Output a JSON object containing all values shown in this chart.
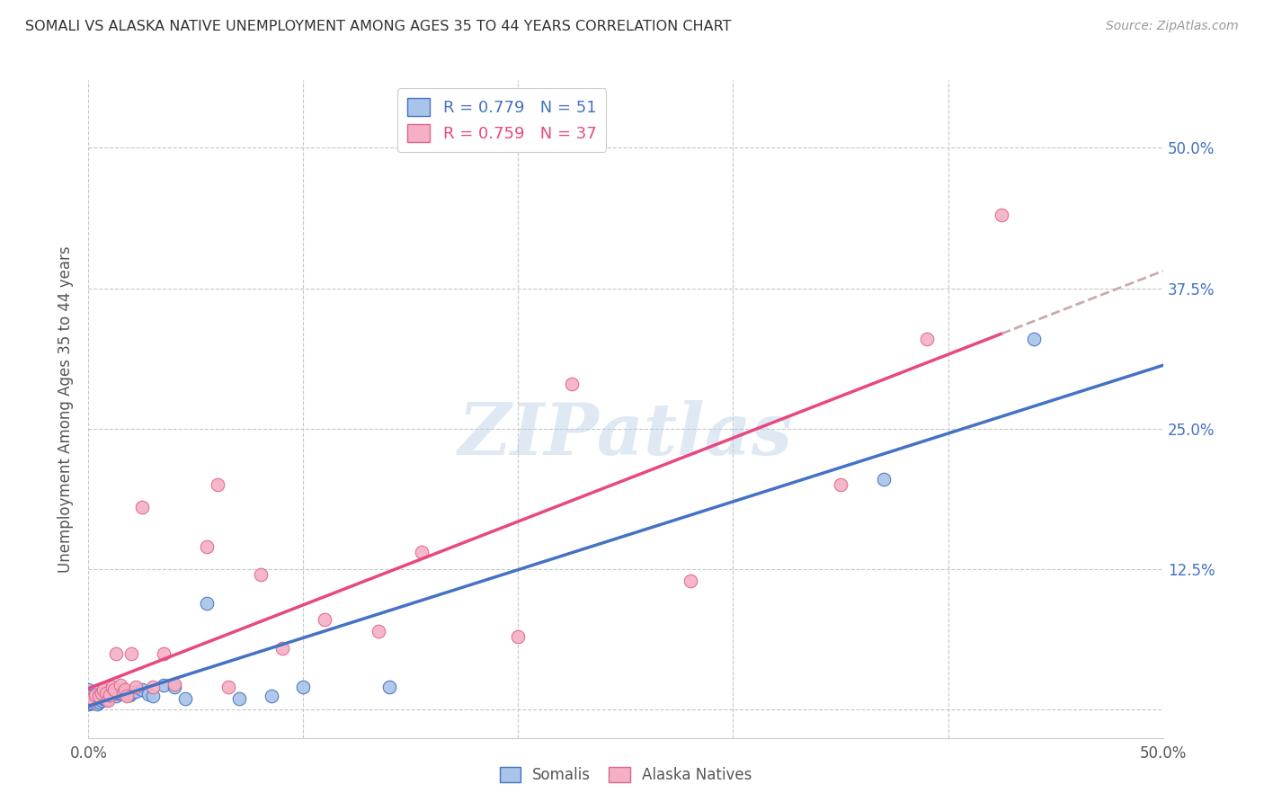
{
  "title": "SOMALI VS ALASKA NATIVE UNEMPLOYMENT AMONG AGES 35 TO 44 YEARS CORRELATION CHART",
  "source": "Source: ZipAtlas.com",
  "ylabel": "Unemployment Among Ages 35 to 44 years",
  "xlim": [
    0.0,
    0.5
  ],
  "ylim": [
    -0.025,
    0.56
  ],
  "xticks": [
    0.0,
    0.5
  ],
  "xticklabels": [
    "0.0%",
    "50.0%"
  ],
  "yticks": [
    0.0,
    0.125,
    0.25,
    0.375,
    0.5
  ],
  "yticklabels": [
    "",
    "12.5%",
    "25.0%",
    "37.5%",
    "50.0%"
  ],
  "R_somali": 0.779,
  "N_somali": 51,
  "R_alaska": 0.759,
  "N_alaska": 37,
  "somali_color": "#a8c4e8",
  "alaska_color": "#f5b0c5",
  "somali_line_color": "#4472c4",
  "alaska_line_color": "#e84880",
  "alaska_dash_color": "#ccaaaa",
  "watermark": "ZIPatlas",
  "background_color": "#ffffff",
  "grid_color": "#c8c8c8",
  "somali_x": [
    0.0,
    0.0,
    0.0,
    0.0,
    0.0,
    0.001,
    0.001,
    0.001,
    0.002,
    0.002,
    0.003,
    0.003,
    0.004,
    0.004,
    0.005,
    0.005,
    0.005,
    0.006,
    0.006,
    0.007,
    0.007,
    0.008,
    0.008,
    0.009,
    0.009,
    0.01,
    0.01,
    0.011,
    0.012,
    0.013,
    0.014,
    0.015,
    0.016,
    0.017,
    0.018,
    0.019,
    0.02,
    0.022,
    0.025,
    0.028,
    0.03,
    0.035,
    0.04,
    0.045,
    0.055,
    0.07,
    0.085,
    0.1,
    0.14,
    0.37,
    0.44
  ],
  "somali_y": [
    0.005,
    0.008,
    0.01,
    0.012,
    0.018,
    0.006,
    0.008,
    0.012,
    0.006,
    0.01,
    0.008,
    0.013,
    0.005,
    0.01,
    0.007,
    0.012,
    0.018,
    0.008,
    0.014,
    0.01,
    0.015,
    0.009,
    0.015,
    0.01,
    0.013,
    0.012,
    0.016,
    0.013,
    0.014,
    0.012,
    0.015,
    0.015,
    0.016,
    0.016,
    0.014,
    0.013,
    0.015,
    0.016,
    0.018,
    0.014,
    0.012,
    0.022,
    0.02,
    0.01,
    0.095,
    0.01,
    0.012,
    0.02,
    0.02,
    0.205,
    0.33
  ],
  "alaska_x": [
    0.0,
    0.001,
    0.002,
    0.003,
    0.005,
    0.006,
    0.007,
    0.008,
    0.009,
    0.01,
    0.011,
    0.012,
    0.013,
    0.015,
    0.016,
    0.017,
    0.018,
    0.02,
    0.022,
    0.025,
    0.03,
    0.035,
    0.04,
    0.055,
    0.06,
    0.065,
    0.08,
    0.09,
    0.11,
    0.135,
    0.155,
    0.2,
    0.225,
    0.28,
    0.35,
    0.39,
    0.425
  ],
  "alaska_y": [
    0.01,
    0.008,
    0.01,
    0.013,
    0.012,
    0.015,
    0.018,
    0.015,
    0.008,
    0.013,
    0.02,
    0.018,
    0.05,
    0.022,
    0.015,
    0.018,
    0.012,
    0.05,
    0.02,
    0.18,
    0.02,
    0.05,
    0.023,
    0.145,
    0.2,
    0.02,
    0.12,
    0.055,
    0.08,
    0.07,
    0.14,
    0.065,
    0.29,
    0.115,
    0.2,
    0.33,
    0.44
  ]
}
